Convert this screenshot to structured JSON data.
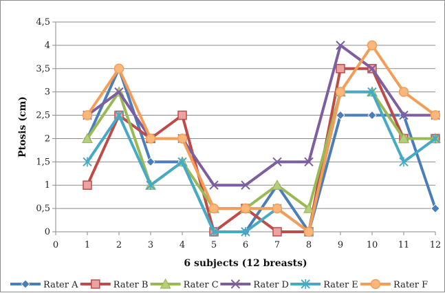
{
  "chart_data": {
    "type": "line",
    "title": "",
    "xlabel": "6 subjects (12 breasts)",
    "ylabel": "Ptosis (cm)",
    "x_ticks": [
      "0",
      "1",
      "2",
      "3",
      "4",
      "5",
      "6",
      "7",
      "8",
      "9",
      "10",
      "11",
      "12"
    ],
    "y_ticks": [
      "0",
      "0,5",
      "1",
      "1,5",
      "2",
      "2,5",
      "3",
      "3,5",
      "4",
      "4,5"
    ],
    "xlim": [
      0,
      12
    ],
    "ylim": [
      0,
      4.5
    ],
    "grid": "horizontal",
    "legend_position": "bottom",
    "x": [
      1,
      2,
      3,
      4,
      5,
      6,
      7,
      8,
      9,
      10,
      11,
      12
    ],
    "series": [
      {
        "name": "Rater A",
        "color": "#4a7ebb",
        "marker": "diamond",
        "values": [
          2,
          3.5,
          1.5,
          1.5,
          0,
          0,
          1,
          0,
          2.5,
          2.5,
          2.5,
          0.5
        ]
      },
      {
        "name": "Rater B",
        "color": "#be4b48",
        "marker": "square",
        "values": [
          1,
          2.5,
          2,
          2.5,
          0,
          0.5,
          0,
          0,
          3.5,
          3.5,
          2,
          2
        ]
      },
      {
        "name": "Rater C",
        "color": "#98b954",
        "marker": "triangle",
        "values": [
          2,
          3,
          1,
          1.5,
          0.5,
          0.5,
          1,
          0.5,
          3,
          3,
          2,
          2
        ]
      },
      {
        "name": "Rater D",
        "color": "#7d5fa0",
        "marker": "x",
        "values": [
          2.5,
          3,
          2,
          2,
          1,
          1,
          1.5,
          1.5,
          4,
          3.5,
          2.5,
          2.5
        ]
      },
      {
        "name": "Rater E",
        "color": "#46aac5",
        "marker": "asterisk",
        "values": [
          1.5,
          2.5,
          1,
          1.5,
          0,
          0,
          0.5,
          0,
          3,
          3,
          1.5,
          2
        ]
      },
      {
        "name": "Rater F",
        "color": "#f59d56",
        "marker": "circle",
        "values": [
          2.5,
          3.5,
          2,
          2,
          0.5,
          0.5,
          0.5,
          0,
          3,
          4,
          3,
          2.5
        ]
      }
    ]
  }
}
